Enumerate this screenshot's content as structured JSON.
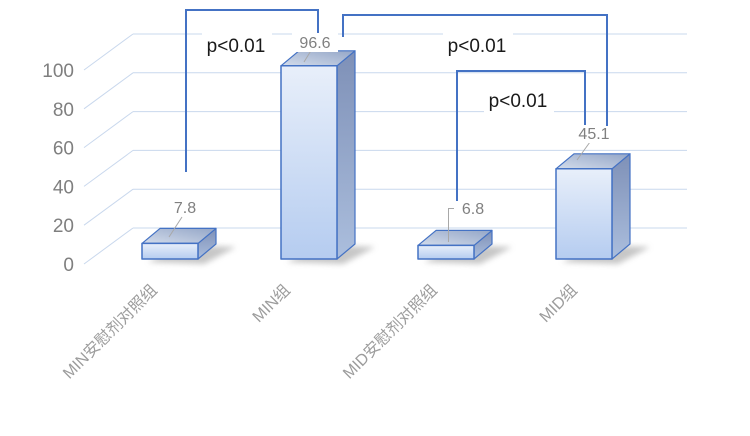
{
  "chart_data": {
    "type": "bar",
    "variant": "3d",
    "title": "",
    "xlabel": "",
    "ylabel": "",
    "categories": [
      "MIN安慰剂对照组",
      "MIN组",
      "MID安慰剂对照组",
      "MID组"
    ],
    "values": [
      7.8,
      96.6,
      6.8,
      45.1
    ],
    "data_labels": [
      "7.8",
      "96.6",
      "6.8",
      "45.1"
    ],
    "yticks": [
      "0",
      "20",
      "40",
      "60",
      "80",
      "100"
    ],
    "ylim": [
      0,
      100
    ],
    "grid": true,
    "legend": false,
    "annotations": [
      {
        "label": "p<0.01",
        "compares": [
          "MIN安慰剂对照组",
          "MIN组"
        ]
      },
      {
        "label": "p<0.01",
        "compares": [
          "MIN组",
          "MID组"
        ]
      },
      {
        "label": "p<0.01",
        "compares": [
          "MID安慰剂对照组",
          "MID组"
        ]
      }
    ],
    "colors": {
      "background": "#FFFFFF",
      "gridline": "#C9D8ED",
      "bar_outline": "#4472C4",
      "bar_front_top": "#E8EFFA",
      "bar_front_bottom": "#B5CCF0",
      "bar_top_light": "#D3DCEB",
      "bar_top_dark": "#94A6C7",
      "bar_side_top": "#7E90B7",
      "bar_side_bottom": "#ABBEDD",
      "bracket": "#4472C4",
      "leader": "#A8A8A8",
      "tick_text": "#7F7F7F",
      "data_label_text": "#808080",
      "category_text": "#9C9C9C",
      "p_label_text": "#1A1A1A",
      "shadow": "#8E8E8E"
    }
  }
}
